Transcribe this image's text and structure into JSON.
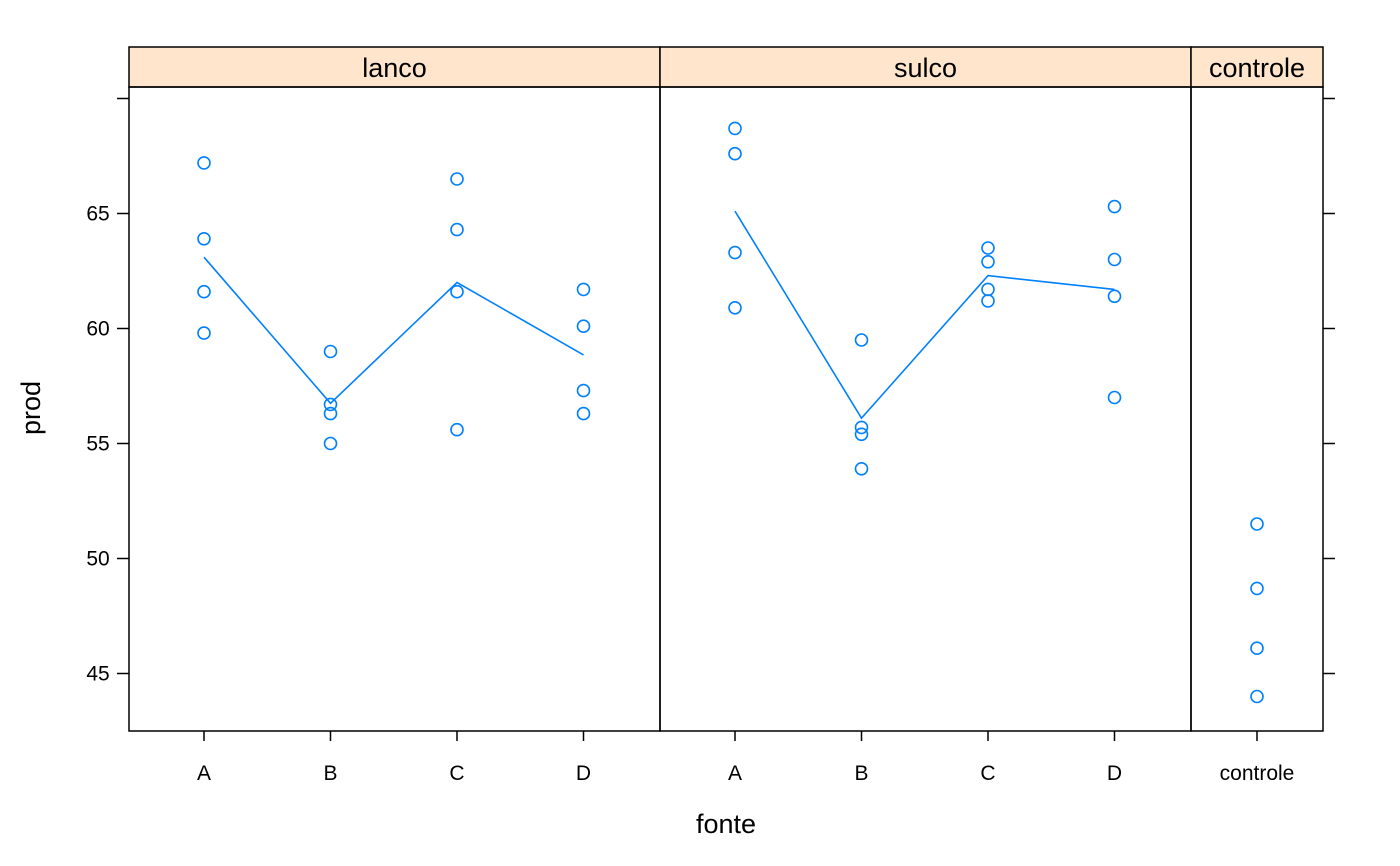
{
  "chart_data": {
    "type": "scatter",
    "xlabel": "fonte",
    "ylabel": "prod",
    "ylim": [
      42.5,
      70.5
    ],
    "yticks": [
      45,
      50,
      55,
      60,
      65
    ],
    "grid": false,
    "colors": {
      "points": "#0080ff",
      "strip": "#ffe5cc",
      "line": "#0080ff"
    },
    "panels": [
      {
        "name": "lanco",
        "categories": [
          "A",
          "B",
          "C",
          "D"
        ],
        "points": [
          {
            "x": "A",
            "y": 67.2
          },
          {
            "x": "A",
            "y": 63.9
          },
          {
            "x": "A",
            "y": 61.6
          },
          {
            "x": "A",
            "y": 59.8
          },
          {
            "x": "B",
            "y": 59.0
          },
          {
            "x": "B",
            "y": 56.7
          },
          {
            "x": "B",
            "y": 56.3
          },
          {
            "x": "B",
            "y": 55.0
          },
          {
            "x": "C",
            "y": 66.5
          },
          {
            "x": "C",
            "y": 64.3
          },
          {
            "x": "C",
            "y": 61.6
          },
          {
            "x": "C",
            "y": 55.6
          },
          {
            "x": "D",
            "y": 61.7
          },
          {
            "x": "D",
            "y": 60.1
          },
          {
            "x": "D",
            "y": 57.3
          },
          {
            "x": "D",
            "y": 56.3
          }
        ],
        "mean_line": [
          63.1,
          56.75,
          62.0,
          58.85
        ]
      },
      {
        "name": "sulco",
        "categories": [
          "A",
          "B",
          "C",
          "D"
        ],
        "points": [
          {
            "x": "A",
            "y": 68.7
          },
          {
            "x": "A",
            "y": 67.6
          },
          {
            "x": "A",
            "y": 63.3
          },
          {
            "x": "A",
            "y": 60.9
          },
          {
            "x": "B",
            "y": 59.5
          },
          {
            "x": "B",
            "y": 55.7
          },
          {
            "x": "B",
            "y": 55.4
          },
          {
            "x": "B",
            "y": 53.9
          },
          {
            "x": "C",
            "y": 63.5
          },
          {
            "x": "C",
            "y": 62.9
          },
          {
            "x": "C",
            "y": 61.7
          },
          {
            "x": "C",
            "y": 61.2
          },
          {
            "x": "D",
            "y": 65.3
          },
          {
            "x": "D",
            "y": 63.0
          },
          {
            "x": "D",
            "y": 61.4
          },
          {
            "x": "D",
            "y": 57.0
          }
        ],
        "mean_line": [
          65.1,
          56.1,
          62.3,
          61.7
        ]
      },
      {
        "name": "controle",
        "categories": [
          "controle"
        ],
        "points": [
          {
            "x": "controle",
            "y": 51.5
          },
          {
            "x": "controle",
            "y": 48.7
          },
          {
            "x": "controle",
            "y": 46.1
          },
          {
            "x": "controle",
            "y": 44.0
          }
        ],
        "mean_line": []
      }
    ]
  }
}
